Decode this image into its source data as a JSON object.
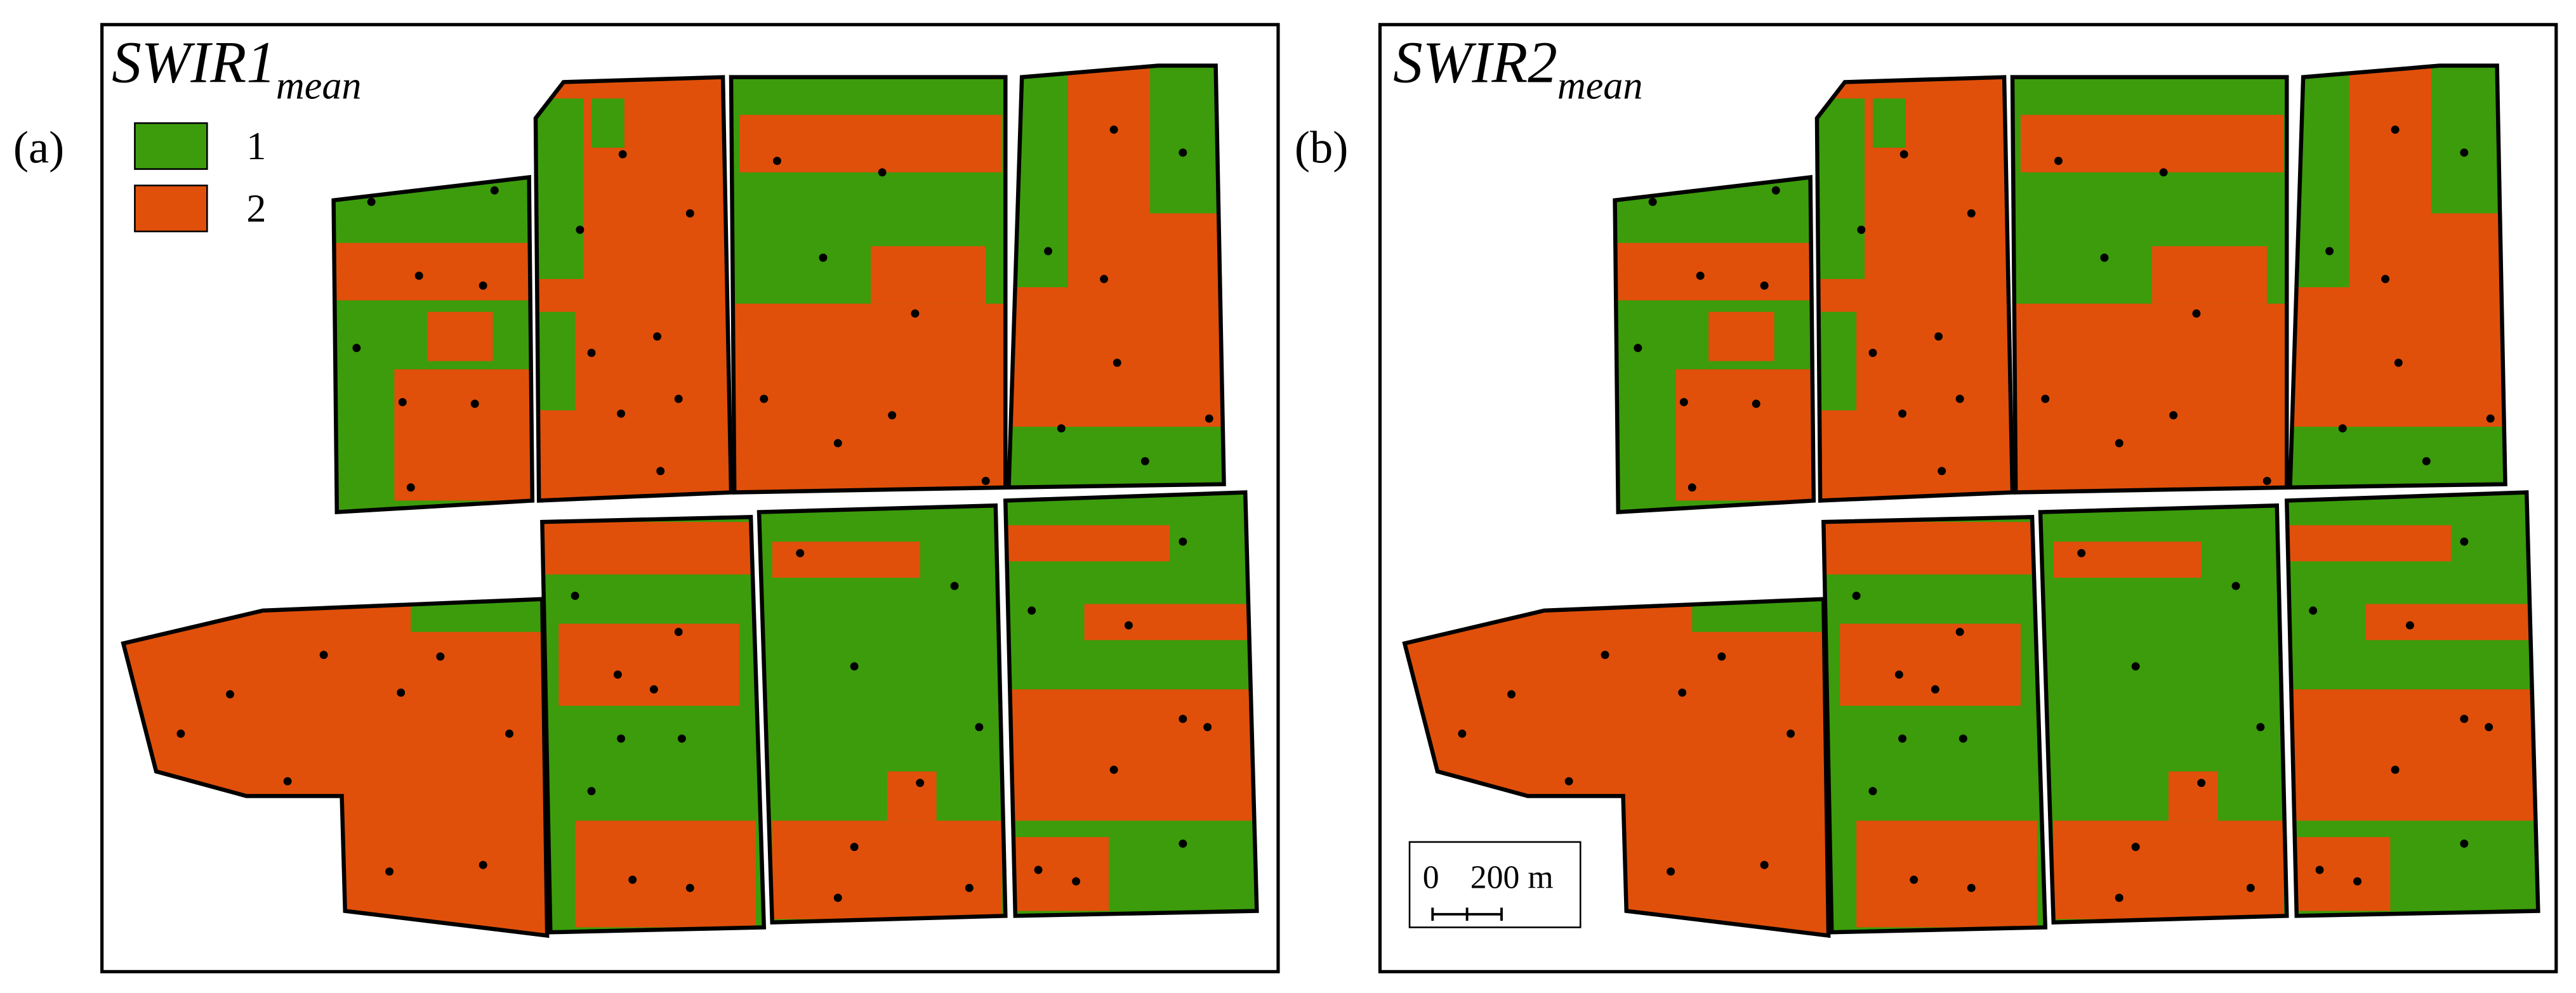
{
  "panels": [
    {
      "label": "(a)",
      "title": "SWIR1",
      "title_sub": "mean"
    },
    {
      "label": "(b)",
      "title": "SWIR2",
      "title_sub": "mean"
    }
  ],
  "legend": [
    {
      "label": "1",
      "color": "#3c9c0c"
    },
    {
      "label": "2",
      "color": "#e0500a"
    }
  ],
  "scale_bar": {
    "labels": [
      "0",
      "200 m"
    ]
  }
}
